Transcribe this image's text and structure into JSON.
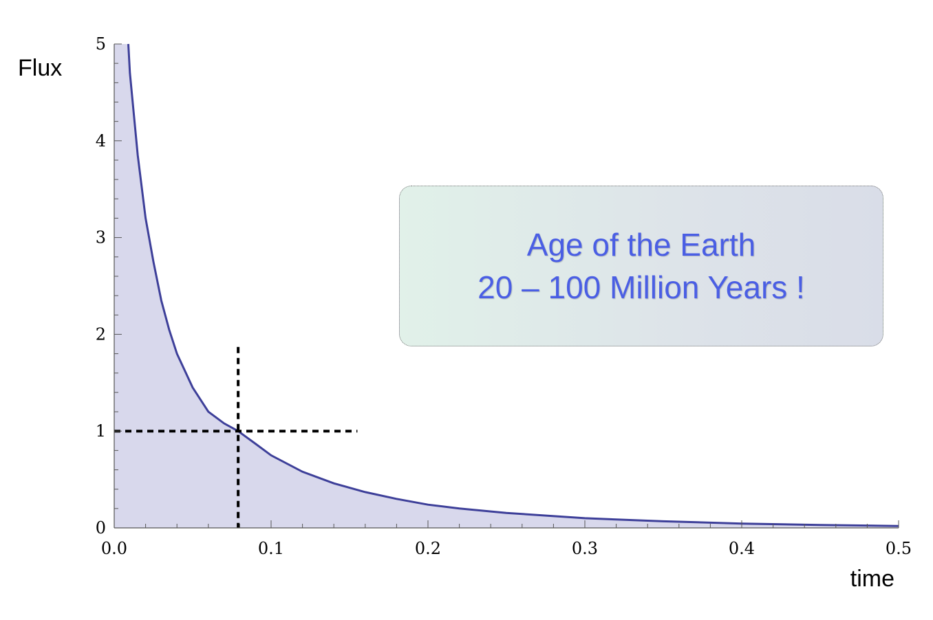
{
  "chart_data": {
    "type": "area",
    "xlabel": "time",
    "ylabel": "Flux",
    "xlim": [
      0,
      0.5
    ],
    "ylim": [
      0,
      5
    ],
    "xticks": [
      "0.0",
      "0.1",
      "0.2",
      "0.3",
      "0.4",
      "0.5"
    ],
    "yticks": [
      "0",
      "1",
      "2",
      "3",
      "4",
      "5"
    ],
    "series": [
      {
        "x": [
          0.009,
          0.01,
          0.015,
          0.02,
          0.025,
          0.03,
          0.035,
          0.04,
          0.05,
          0.06,
          0.07,
          0.079,
          0.09,
          0.1,
          0.12,
          0.14,
          0.16,
          0.18,
          0.2,
          0.22,
          0.25,
          0.3,
          0.35,
          0.4,
          0.45,
          0.5
        ],
        "y": [
          5.0,
          4.7,
          3.85,
          3.2,
          2.75,
          2.35,
          2.05,
          1.8,
          1.45,
          1.2,
          1.08,
          1.0,
          0.87,
          0.75,
          0.58,
          0.46,
          0.37,
          0.3,
          0.24,
          0.2,
          0.155,
          0.1,
          0.068,
          0.045,
          0.03,
          0.02
        ]
      }
    ],
    "reference_point": {
      "x": 0.079,
      "y": 1
    },
    "colors": {
      "line": "#3d3f99",
      "fill": "#d8d8ec",
      "axis": "#555555"
    }
  },
  "annotation": {
    "line1": "Age of the Earth",
    "line2": "20 – 100 Million Years !"
  }
}
